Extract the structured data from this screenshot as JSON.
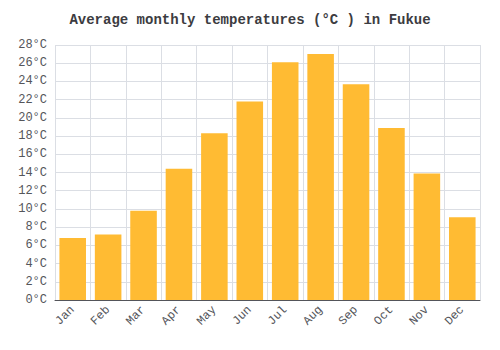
{
  "chart_data": {
    "type": "bar",
    "title": "Average monthly temperatures (°C ) in Fukue",
    "categories": [
      "Jan",
      "Feb",
      "Mar",
      "Apr",
      "May",
      "Jun",
      "Jul",
      "Aug",
      "Sep",
      "Oct",
      "Nov",
      "Dec"
    ],
    "values": [
      6.8,
      7.2,
      9.8,
      14.4,
      18.3,
      21.8,
      26.1,
      27.0,
      23.7,
      18.9,
      13.9,
      9.1
    ],
    "color": "#FFBB33",
    "ylim": [
      0,
      28
    ],
    "yticks": [
      {
        "value": 0,
        "label": "0°C"
      },
      {
        "value": 2,
        "label": "2°C"
      },
      {
        "value": 4,
        "label": "4°C"
      },
      {
        "value": 6,
        "label": "6°C"
      },
      {
        "value": 8,
        "label": "8°C"
      },
      {
        "value": 10,
        "label": "10°C"
      },
      {
        "value": 12,
        "label": "12°C"
      },
      {
        "value": 14,
        "label": "14°C"
      },
      {
        "value": 16,
        "label": "16°C"
      },
      {
        "value": 18,
        "label": "18°C"
      },
      {
        "value": 20,
        "label": "20°C"
      },
      {
        "value": 22,
        "label": "22°C"
      },
      {
        "value": 24,
        "label": "24°C"
      },
      {
        "value": 26,
        "label": "26°C"
      },
      {
        "value": 28,
        "label": "28°C"
      }
    ],
    "grid": true
  }
}
